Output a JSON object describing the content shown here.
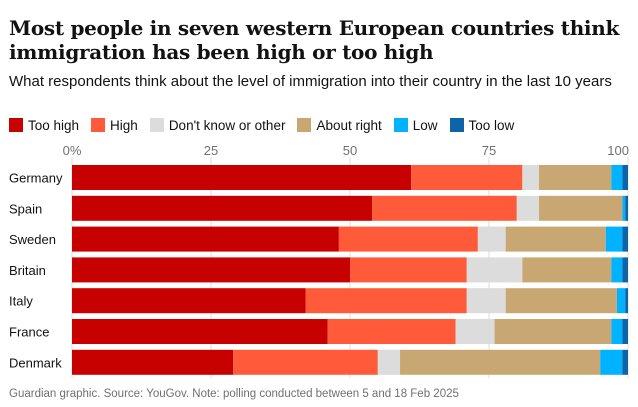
{
  "chart_data": {
    "type": "bar",
    "orientation": "horizontal",
    "stacked": true,
    "title": "Most people in seven western European countries think immigration has been high or too high",
    "subtitle": "What respondents think about the level of immigration into their country in the last 10 years",
    "xlabel": "",
    "ylabel": "",
    "xlim": [
      0,
      100
    ],
    "x_ticks": [
      "0%",
      "25",
      "50",
      "75",
      "100"
    ],
    "x_tick_values": [
      0,
      25,
      50,
      75,
      100
    ],
    "grid": true,
    "legend_position": "top-left",
    "categories": [
      "Germany",
      "Spain",
      "Sweden",
      "Britain",
      "Italy",
      "France",
      "Denmark"
    ],
    "series": [
      {
        "name": "Too high",
        "color": "#c70000",
        "values": [
          61,
          54,
          48,
          50,
          42,
          46,
          29
        ]
      },
      {
        "name": "High",
        "color": "#ff5b3a",
        "values": [
          20,
          26,
          25,
          21,
          29,
          23,
          26
        ]
      },
      {
        "name": "Don't know or other",
        "color": "#dcdcdc",
        "values": [
          3,
          4,
          5,
          10,
          7,
          7,
          4
        ]
      },
      {
        "name": "About right",
        "color": "#c9a772",
        "values": [
          13,
          15,
          18,
          16,
          20,
          21,
          36
        ]
      },
      {
        "name": "Low",
        "color": "#00b2ff",
        "values": [
          2,
          0.5,
          3,
          2,
          1.5,
          2,
          4
        ]
      },
      {
        "name": "Too low",
        "color": "#0f63a7",
        "values": [
          1,
          0.5,
          1,
          1,
          0.5,
          1,
          1
        ]
      }
    ],
    "source": "Guardian graphic. Source: YouGov. Note: polling conducted between 5 and 18 Feb 2025"
  }
}
